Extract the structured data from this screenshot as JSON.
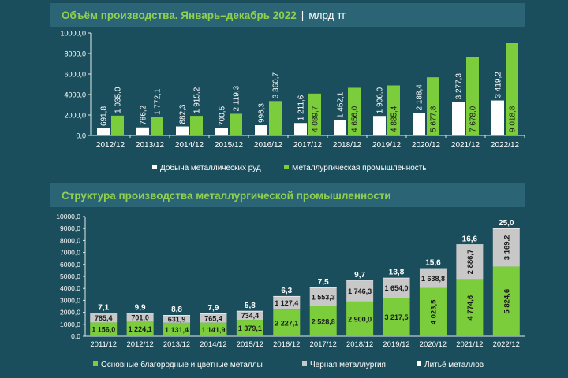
{
  "colors": {
    "background": "#1b4e5c",
    "header": "#2b6475",
    "accent_title": "#8fd14f",
    "green": "#7ccd3c",
    "white": "#ffffff",
    "gray": "#c8c8c8",
    "axis": "#dfe9ec"
  },
  "chart_data": [
    {
      "type": "bar",
      "title": "Объём производства. Январь–декабрь 2022",
      "unit": "млрд тг",
      "categories": [
        "2012/12",
        "2013/12",
        "2014/12",
        "2015/12",
        "2016/12",
        "2017/12",
        "2018/12",
        "2019/12",
        "2020/12",
        "2021/12",
        "2022/12"
      ],
      "ylim": [
        0,
        10000
      ],
      "yticks": [
        "0,0",
        "2000,0",
        "4000,0",
        "6000,0",
        "8000,0",
        "10000,0"
      ],
      "series": [
        {
          "name": "Добыча металлических руд",
          "color": "#ffffff",
          "values": [
            691.8,
            786.2,
            882.3,
            700.5,
            996.3,
            1211.6,
            1462.1,
            1906.0,
            2188.4,
            3277.3,
            3419.2
          ],
          "labels": [
            "691,8",
            "786,2",
            "882,3",
            "700,5",
            "996,3",
            "1 211,6",
            "1 462,1",
            "1 906,0",
            "2 188,4",
            "3 277,3",
            "3 419,2"
          ]
        },
        {
          "name": "Металлургическая промышленность",
          "color": "#7ccd3c",
          "values": [
            1935.0,
            1772.1,
            1915.2,
            2119.3,
            3360.7,
            4089.7,
            4656.0,
            4885.4,
            5677.8,
            7678.0,
            9018.8
          ],
          "labels": [
            "1 935,0",
            "1 772,1",
            "1 915,2",
            "2 119,3",
            "3 360,7",
            "4 089,7",
            "4 656,0",
            "4 885,4",
            "5 677,8",
            "7 678,0",
            "9 018,8"
          ]
        }
      ]
    },
    {
      "type": "bar",
      "stacked": true,
      "title": "Структура производства металлургической промышленности",
      "categories": [
        "2011/12",
        "2012/12",
        "2013/12",
        "2014/12",
        "2015/12",
        "2016/12",
        "2017/12",
        "2018/12",
        "2019/12",
        "2020/12",
        "2021/12",
        "2022/12"
      ],
      "ylim": [
        0,
        10000
      ],
      "yticks": [
        "0,0",
        "1000,0",
        "2000,0",
        "3000,0",
        "4000,0",
        "5000,0",
        "6000,0",
        "7000,0",
        "8000,0",
        "9000,0",
        "10000,0"
      ],
      "series": [
        {
          "name": "Основные благородные и цветные металлы",
          "color": "#7ccd3c",
          "values": [
            1156.0,
            1224.1,
            1131.4,
            1141.9,
            1379.1,
            2227.1,
            2528.8,
            2900.0,
            3217.5,
            4023.5,
            4774.6,
            5824.6
          ],
          "labels": [
            "1 156,0",
            "1 224,1",
            "1 131,4",
            "1 141,9",
            "1 379,1",
            "2 227,1",
            "2 528,8",
            "2 900,0",
            "3 217,5",
            "4 023,5",
            "4 774,6",
            "5 824,6"
          ]
        },
        {
          "name": "Черная металлургия",
          "color": "#c8c8c8",
          "values": [
            785.4,
            701.0,
            631.9,
            765.4,
            734.4,
            1127.4,
            1553.3,
            1746.3,
            1654.0,
            1638.8,
            2886.7,
            3169.2
          ],
          "labels": [
            "785,4",
            "701,0",
            "631,9",
            "765,4",
            "734,4",
            "1 127,4",
            "1 553,3",
            "1 746,3",
            "1 654,0",
            "1 638,8",
            "2 886,7",
            "3 169,2"
          ]
        },
        {
          "name": "Литьё металлов",
          "color": "#ffffff",
          "values": [
            7.1,
            9.9,
            8.8,
            7.9,
            5.8,
            6.3,
            7.5,
            9.7,
            13.8,
            15.6,
            16.6,
            25.0
          ],
          "labels": [
            "7,1",
            "9,9",
            "8,8",
            "7,9",
            "5,8",
            "6,3",
            "7,5",
            "9,7",
            "13,8",
            "15,6",
            "16,6",
            "25,0"
          ]
        }
      ]
    }
  ]
}
